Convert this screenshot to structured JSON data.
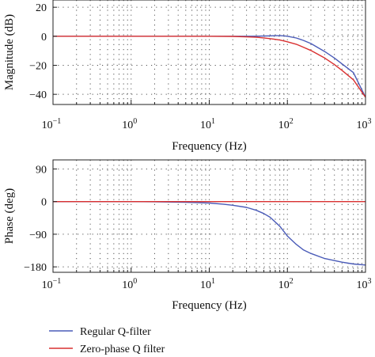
{
  "chart_data": [
    {
      "type": "line",
      "xlabel": "Frequency (Hz)",
      "ylabel": "Magnitude (dB)",
      "xscale": "log",
      "xlim": [
        0.1,
        1000
      ],
      "ylim": [
        -47,
        25
      ],
      "grid": "dotted",
      "xticks": [
        {
          "v": 0.1,
          "base": "10",
          "exp": "−1"
        },
        {
          "v": 1,
          "base": "10",
          "exp": "0"
        },
        {
          "v": 10,
          "base": "10",
          "exp": "1"
        },
        {
          "v": 100,
          "base": "10",
          "exp": "2"
        },
        {
          "v": 1000,
          "base": "10",
          "exp": "3"
        }
      ],
      "yticks": [
        {
          "v": 20,
          "label": "20"
        },
        {
          "v": 0,
          "label": "0"
        },
        {
          "v": -20,
          "label": "−20"
        },
        {
          "v": -40,
          "label": "−40"
        }
      ],
      "series": [
        {
          "name": "Regular Q-filter",
          "color": "#4a5bb8",
          "x": [
            0.1,
            1,
            10,
            20,
            30,
            40,
            50,
            60,
            70,
            80,
            90,
            100,
            130,
            160,
            200,
            300,
            400,
            500,
            700,
            1000
          ],
          "y": [
            0,
            0,
            0,
            0,
            0,
            0.1,
            0.2,
            0.3,
            0.4,
            0.4,
            0.3,
            0,
            -1.2,
            -2.8,
            -5,
            -10.5,
            -15,
            -19,
            -25,
            -42
          ]
        },
        {
          "name": "Zero-phase Q filter",
          "color": "#d93030",
          "x": [
            0.1,
            1,
            10,
            20,
            30,
            40,
            50,
            60,
            70,
            80,
            90,
            100,
            130,
            160,
            200,
            300,
            400,
            500,
            700,
            1000
          ],
          "y": [
            0,
            0,
            0,
            -0.1,
            -0.4,
            -0.7,
            -1.1,
            -1.6,
            -2.1,
            -2.6,
            -3.2,
            -3.8,
            -5.5,
            -7.5,
            -9.8,
            -15,
            -19.5,
            -23.5,
            -30,
            -42
          ]
        }
      ]
    },
    {
      "type": "line",
      "xlabel": "Frequency (Hz)",
      "ylabel": "Phase (deg)",
      "xscale": "log",
      "xlim": [
        0.1,
        1000
      ],
      "ylim": [
        -195,
        115
      ],
      "grid": "dotted",
      "xticks": [
        {
          "v": 0.1,
          "base": "10",
          "exp": "−1"
        },
        {
          "v": 1,
          "base": "10",
          "exp": "0"
        },
        {
          "v": 10,
          "base": "10",
          "exp": "1"
        },
        {
          "v": 100,
          "base": "10",
          "exp": "2"
        },
        {
          "v": 1000,
          "base": "10",
          "exp": "3"
        }
      ],
      "yticks": [
        {
          "v": 90,
          "label": "90"
        },
        {
          "v": 0,
          "label": "0"
        },
        {
          "v": -90,
          "label": "−90"
        },
        {
          "v": -180,
          "label": "−180"
        }
      ],
      "series": [
        {
          "name": "Regular Q-filter",
          "color": "#4a5bb8",
          "x": [
            0.1,
            1,
            2,
            5,
            10,
            15,
            20,
            30,
            40,
            50,
            60,
            80,
            100,
            130,
            160,
            200,
            300,
            500,
            700,
            1000
          ],
          "y": [
            0,
            0,
            -0.5,
            -2,
            -4,
            -7,
            -10,
            -16,
            -24,
            -33,
            -43,
            -68,
            -95,
            -118,
            -133,
            -143,
            -157,
            -167,
            -172,
            -175
          ]
        },
        {
          "name": "Zero-phase Q filter",
          "color": "#d93030",
          "x": [
            0.1,
            1000
          ],
          "y": [
            0,
            0
          ]
        }
      ]
    }
  ],
  "legend": {
    "placement": "bottom-left",
    "items": [
      {
        "label": "Regular Q-filter",
        "color": "#4a5bb8"
      },
      {
        "label": "Zero-phase Q filter",
        "color": "#d93030"
      }
    ]
  }
}
